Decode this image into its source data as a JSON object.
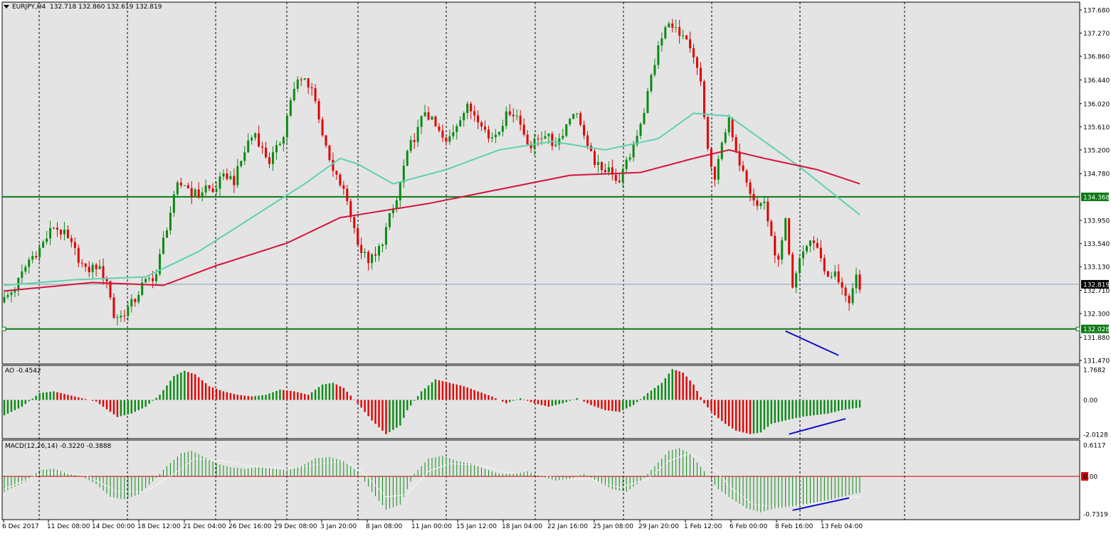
{
  "colors": {
    "background": "#ffffff",
    "plot_bg": "#e4e4e4",
    "grid": "#000000",
    "bull": "#0a8a14",
    "bear": "#e00000",
    "ma_fast": "#5fd1ae",
    "ma_slow": "#d4143c",
    "hline": "#0a7a14",
    "trendline": "#1010c8",
    "price_line": "#8aa0b8",
    "zero_line": "#d00000"
  },
  "header": {
    "symbol": "EURJPY,H4",
    "ohlc": "132.718 132.860 132.619 132.819"
  },
  "ao_header": "AO -0.4542",
  "macd_header": "MACD(12,26,14) -0.3220 -0.3888",
  "price_axis": [
    "137.680",
    "137.270",
    "136.860",
    "136.440",
    "136.020",
    "135.610",
    "135.200",
    "134.780",
    "134.368",
    "133.950",
    "133.540",
    "133.130",
    "132.819",
    "132.710",
    "132.300",
    "132.028",
    "131.880",
    "131.470"
  ],
  "ao_axis": [
    "1.7682",
    "0.00",
    "-2.0128"
  ],
  "macd_axis": [
    "0.6117",
    "0.00",
    "-0.7319"
  ],
  "time_labels": [
    "6 Dec 2017",
    "11 Dec 08:00",
    "14 Dec 00:00",
    "18 Dec 12:00",
    "21 Dec 04:00",
    "26 Dec 16:00",
    "29 Dec 08:00",
    "3 Jan 20:00",
    "8 Jan 08:00",
    "11 Jan 00:00",
    "15 Jan 12:00",
    "18 Jan 04:00",
    "22 Jan 16:00",
    "25 Jan 08:00",
    "29 Jan 20:00",
    "1 Feb 12:00",
    "6 Feb 00:00",
    "8 Feb 16:00",
    "13 Feb 04:00"
  ],
  "chart_data": {
    "type": "candlestick",
    "symbol": "EURJPY",
    "timeframe": "H4",
    "ylim": [
      131.47,
      137.68
    ],
    "current_price": 132.819,
    "horizontal_levels": [
      134.368,
      132.028
    ],
    "close_path": [
      [
        0,
        132.55
      ],
      [
        3,
        132.75
      ],
      [
        7,
        133.25
      ],
      [
        10,
        133.45
      ],
      [
        14,
        133.85
      ],
      [
        17,
        133.7
      ],
      [
        20,
        133.4
      ],
      [
        23,
        133.05
      ],
      [
        26,
        133.15
      ],
      [
        29,
        132.9
      ],
      [
        31,
        132.25
      ],
      [
        33,
        132.25
      ],
      [
        35,
        132.4
      ],
      [
        37,
        132.55
      ],
      [
        39,
        132.8
      ],
      [
        41,
        132.9
      ],
      [
        43,
        133.0
      ],
      [
        45,
        133.6
      ],
      [
        47,
        134.1
      ],
      [
        49,
        134.55
      ],
      [
        51,
        134.6
      ],
      [
        53,
        134.45
      ],
      [
        55,
        134.4
      ],
      [
        57,
        134.55
      ],
      [
        59,
        134.45
      ],
      [
        61,
        134.65
      ],
      [
        63,
        134.75
      ],
      [
        65,
        134.65
      ],
      [
        67,
        135.0
      ],
      [
        69,
        135.35
      ],
      [
        71,
        135.5
      ],
      [
        73,
        135.2
      ],
      [
        75,
        135.0
      ],
      [
        77,
        135.2
      ],
      [
        79,
        135.5
      ],
      [
        81,
        136.1
      ],
      [
        83,
        136.4
      ],
      [
        85,
        136.45
      ],
      [
        87,
        136.3
      ],
      [
        89,
        135.8
      ],
      [
        91,
        135.2
      ],
      [
        93,
        134.8
      ],
      [
        95,
        134.6
      ],
      [
        97,
        134.3
      ],
      [
        99,
        133.8
      ],
      [
        101,
        133.4
      ],
      [
        103,
        133.25
      ],
      [
        105,
        133.3
      ],
      [
        107,
        133.6
      ],
      [
        109,
        134.0
      ],
      [
        111,
        134.3
      ],
      [
        113,
        134.9
      ],
      [
        115,
        135.3
      ],
      [
        117,
        135.55
      ],
      [
        119,
        135.9
      ],
      [
        121,
        135.7
      ],
      [
        123,
        135.5
      ],
      [
        125,
        135.3
      ],
      [
        127,
        135.55
      ],
      [
        129,
        135.8
      ],
      [
        131,
        135.95
      ],
      [
        133,
        135.85
      ],
      [
        135,
        135.7
      ],
      [
        137,
        135.4
      ],
      [
        139,
        135.5
      ],
      [
        141,
        135.7
      ],
      [
        143,
        135.9
      ],
      [
        145,
        135.8
      ],
      [
        147,
        135.5
      ],
      [
        149,
        135.25
      ],
      [
        151,
        135.4
      ],
      [
        153,
        135.5
      ],
      [
        155,
        135.3
      ],
      [
        157,
        135.4
      ],
      [
        159,
        135.65
      ],
      [
        161,
        135.9
      ],
      [
        163,
        135.7
      ],
      [
        165,
        135.2
      ],
      [
        167,
        135.0
      ],
      [
        169,
        134.8
      ],
      [
        171,
        134.95
      ],
      [
        173,
        134.6
      ],
      [
        175,
        134.8
      ],
      [
        177,
        135.1
      ],
      [
        179,
        135.5
      ],
      [
        181,
        135.9
      ],
      [
        183,
        136.5
      ],
      [
        185,
        137.0
      ],
      [
        187,
        137.35
      ],
      [
        189,
        137.45
      ],
      [
        191,
        137.2
      ],
      [
        193,
        137.1
      ],
      [
        195,
        136.8
      ],
      [
        197,
        136.4
      ],
      [
        199,
        135.2
      ],
      [
        201,
        134.6
      ],
      [
        203,
        135.4
      ],
      [
        205,
        135.7
      ],
      [
        207,
        135.1
      ],
      [
        209,
        134.9
      ],
      [
        211,
        134.5
      ],
      [
        213,
        134.2
      ],
      [
        215,
        134.3
      ],
      [
        217,
        133.6
      ],
      [
        219,
        133.2
      ],
      [
        221,
        133.9
      ],
      [
        223,
        132.7
      ],
      [
        225,
        133.3
      ],
      [
        227,
        133.5
      ],
      [
        229,
        133.6
      ],
      [
        231,
        133.3
      ],
      [
        233,
        132.9
      ],
      [
        235,
        133.0
      ],
      [
        237,
        132.8
      ],
      [
        239,
        132.4
      ],
      [
        241,
        132.95
      ],
      [
        242,
        132.8
      ],
      [
        243,
        132.82
      ]
    ],
    "ma_fast": [
      [
        0,
        132.8
      ],
      [
        20,
        132.9
      ],
      [
        40,
        132.95
      ],
      [
        55,
        133.4
      ],
      [
        70,
        134.0
      ],
      [
        85,
        134.6
      ],
      [
        95,
        135.05
      ],
      [
        100,
        134.95
      ],
      [
        110,
        134.6
      ],
      [
        125,
        134.85
      ],
      [
        140,
        135.2
      ],
      [
        155,
        135.35
      ],
      [
        170,
        135.2
      ],
      [
        185,
        135.4
      ],
      [
        195,
        135.85
      ],
      [
        205,
        135.8
      ],
      [
        215,
        135.35
      ],
      [
        225,
        134.9
      ],
      [
        235,
        134.4
      ],
      [
        242,
        134.05
      ]
    ],
    "ma_slow": [
      [
        0,
        132.7
      ],
      [
        25,
        132.85
      ],
      [
        45,
        132.8
      ],
      [
        60,
        133.15
      ],
      [
        80,
        133.55
      ],
      [
        95,
        134.0
      ],
      [
        105,
        134.1
      ],
      [
        120,
        134.25
      ],
      [
        140,
        134.5
      ],
      [
        160,
        134.75
      ],
      [
        180,
        134.8
      ],
      [
        195,
        135.05
      ],
      [
        205,
        135.2
      ],
      [
        215,
        135.05
      ],
      [
        230,
        134.85
      ],
      [
        242,
        134.6
      ]
    ],
    "ao": [
      [
        0,
        -0.9
      ],
      [
        5,
        -0.4
      ],
      [
        10,
        0.4
      ],
      [
        14,
        0.5
      ],
      [
        18,
        0.3
      ],
      [
        22,
        0.1
      ],
      [
        26,
        -0.1
      ],
      [
        30,
        -0.7
      ],
      [
        32,
        -1.0
      ],
      [
        36,
        -0.8
      ],
      [
        40,
        -0.4
      ],
      [
        44,
        0.3
      ],
      [
        48,
        1.4
      ],
      [
        51,
        1.7
      ],
      [
        54,
        1.5
      ],
      [
        58,
        0.8
      ],
      [
        62,
        0.5
      ],
      [
        66,
        0.3
      ],
      [
        70,
        0.2
      ],
      [
        74,
        0.3
      ],
      [
        78,
        0.6
      ],
      [
        82,
        0.5
      ],
      [
        86,
        0.3
      ],
      [
        90,
        0.9
      ],
      [
        93,
        1.0
      ],
      [
        96,
        0.7
      ],
      [
        100,
        -0.2
      ],
      [
        104,
        -1.2
      ],
      [
        108,
        -2.0
      ],
      [
        112,
        -1.5
      ],
      [
        114,
        -0.6
      ],
      [
        118,
        0.5
      ],
      [
        122,
        1.2
      ],
      [
        126,
        1.0
      ],
      [
        130,
        0.8
      ],
      [
        134,
        0.5
      ],
      [
        138,
        0.2
      ],
      [
        142,
        -0.2
      ],
      [
        146,
        0.1
      ],
      [
        150,
        -0.2
      ],
      [
        154,
        -0.4
      ],
      [
        158,
        -0.2
      ],
      [
        162,
        0.1
      ],
      [
        166,
        -0.3
      ],
      [
        170,
        -0.6
      ],
      [
        174,
        -0.7
      ],
      [
        178,
        -0.3
      ],
      [
        182,
        0.4
      ],
      [
        186,
        1.0
      ],
      [
        189,
        1.8
      ],
      [
        192,
        1.6
      ],
      [
        195,
        0.9
      ],
      [
        198,
        -0.2
      ],
      [
        201,
        -0.9
      ],
      [
        204,
        -1.4
      ],
      [
        207,
        -1.8
      ],
      [
        211,
        -2.0
      ],
      [
        214,
        -1.9
      ],
      [
        217,
        -1.4
      ],
      [
        221,
        -1.2
      ],
      [
        225,
        -1.0
      ],
      [
        229,
        -0.9
      ],
      [
        233,
        -0.8
      ],
      [
        237,
        -0.6
      ],
      [
        240,
        -0.5
      ],
      [
        242,
        -0.45
      ]
    ],
    "macd": [
      [
        0,
        -0.3
      ],
      [
        6,
        -0.1
      ],
      [
        10,
        0.12
      ],
      [
        14,
        0.15
      ],
      [
        18,
        0.05
      ],
      [
        22,
        0.0
      ],
      [
        26,
        -0.15
      ],
      [
        30,
        -0.4
      ],
      [
        34,
        -0.45
      ],
      [
        38,
        -0.35
      ],
      [
        42,
        -0.1
      ],
      [
        46,
        0.2
      ],
      [
        50,
        0.45
      ],
      [
        53,
        0.5
      ],
      [
        56,
        0.4
      ],
      [
        60,
        0.25
      ],
      [
        64,
        0.18
      ],
      [
        68,
        0.15
      ],
      [
        72,
        0.18
      ],
      [
        76,
        0.15
      ],
      [
        80,
        0.12
      ],
      [
        84,
        0.2
      ],
      [
        88,
        0.35
      ],
      [
        92,
        0.38
      ],
      [
        96,
        0.3
      ],
      [
        100,
        0.1
      ],
      [
        104,
        -0.3
      ],
      [
        108,
        -0.65
      ],
      [
        112,
        -0.55
      ],
      [
        116,
        0.05
      ],
      [
        120,
        0.35
      ],
      [
        124,
        0.4
      ],
      [
        128,
        0.3
      ],
      [
        132,
        0.25
      ],
      [
        136,
        0.15
      ],
      [
        140,
        0.05
      ],
      [
        144,
        0.05
      ],
      [
        148,
        0.1
      ],
      [
        152,
        0.0
      ],
      [
        156,
        -0.08
      ],
      [
        160,
        -0.05
      ],
      [
        164,
        0.05
      ],
      [
        168,
        -0.1
      ],
      [
        172,
        -0.25
      ],
      [
        176,
        -0.3
      ],
      [
        180,
        -0.1
      ],
      [
        184,
        0.2
      ],
      [
        188,
        0.5
      ],
      [
        191,
        0.55
      ],
      [
        194,
        0.45
      ],
      [
        198,
        0.1
      ],
      [
        202,
        -0.25
      ],
      [
        206,
        -0.45
      ],
      [
        210,
        -0.62
      ],
      [
        214,
        -0.7
      ],
      [
        218,
        -0.62
      ],
      [
        222,
        -0.6
      ],
      [
        226,
        -0.55
      ],
      [
        230,
        -0.5
      ],
      [
        234,
        -0.45
      ],
      [
        238,
        -0.38
      ],
      [
        242,
        -0.32
      ]
    ],
    "macd_signal": [
      [
        0,
        -0.25
      ],
      [
        10,
        0.05
      ],
      [
        16,
        0.08
      ],
      [
        24,
        0.0
      ],
      [
        32,
        -0.3
      ],
      [
        40,
        -0.3
      ],
      [
        48,
        0.05
      ],
      [
        54,
        0.35
      ],
      [
        62,
        0.3
      ],
      [
        72,
        0.18
      ],
      [
        82,
        0.16
      ],
      [
        90,
        0.25
      ],
      [
        96,
        0.3
      ],
      [
        102,
        0.05
      ],
      [
        108,
        -0.4
      ],
      [
        114,
        -0.35
      ],
      [
        120,
        0.1
      ],
      [
        126,
        0.25
      ],
      [
        134,
        0.22
      ],
      [
        142,
        0.08
      ],
      [
        150,
        0.05
      ],
      [
        158,
        -0.05
      ],
      [
        166,
        -0.05
      ],
      [
        174,
        -0.22
      ],
      [
        182,
        -0.05
      ],
      [
        188,
        0.3
      ],
      [
        194,
        0.45
      ],
      [
        200,
        0.2
      ],
      [
        206,
        -0.25
      ],
      [
        212,
        -0.55
      ],
      [
        220,
        -0.6
      ],
      [
        230,
        -0.52
      ],
      [
        242,
        -0.39
      ]
    ],
    "trendlines": {
      "price": [
        [
          221,
          131.99
        ],
        [
          236,
          131.56
        ]
      ],
      "ao": [
        [
          222,
          -2.0
        ],
        [
          238,
          -1.1
        ]
      ],
      "macd": [
        [
          223,
          -0.66
        ],
        [
          239,
          -0.42
        ]
      ]
    }
  }
}
